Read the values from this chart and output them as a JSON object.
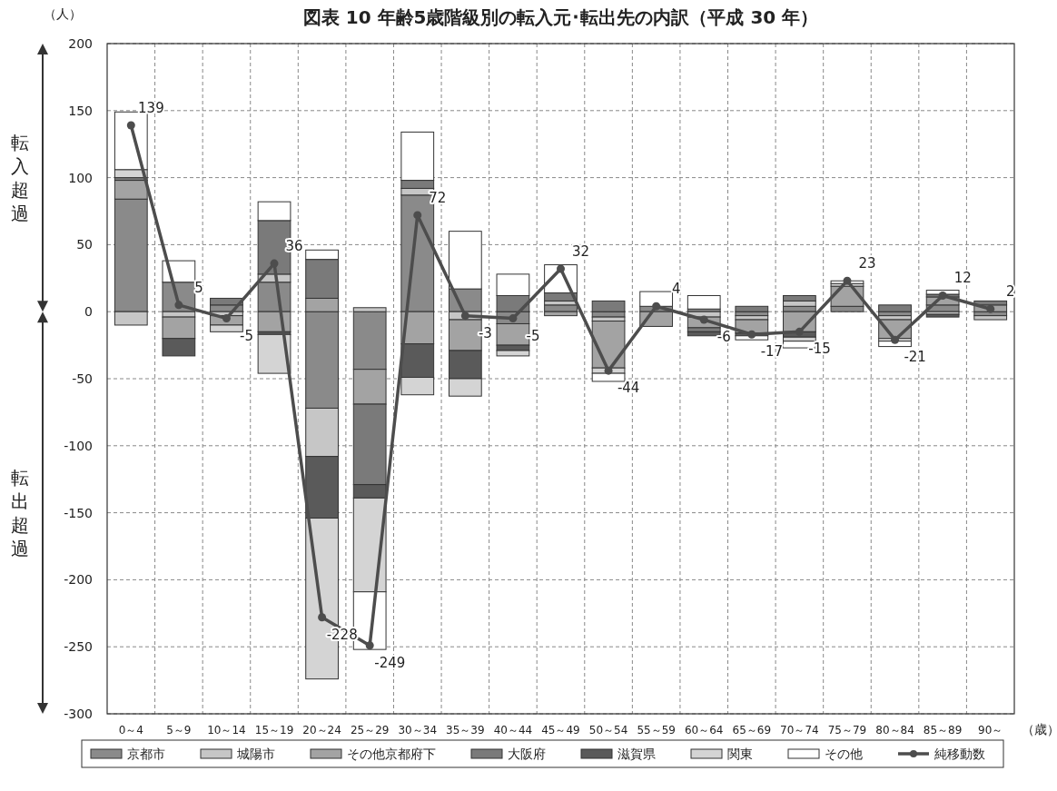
{
  "chart_data": {
    "type": "bar",
    "title": "図表 10  年齢5歳階級別の転入元･転出先の内訳（平成 30 年）",
    "stacked": true,
    "categories": [
      "0～4",
      "5～9",
      "10～14",
      "15～19",
      "20～24",
      "25～29",
      "30～34",
      "35～39",
      "40～44",
      "45～49",
      "50～54",
      "55～59",
      "60～64",
      "65～69",
      "70～74",
      "75～79",
      "80～84",
      "85～89",
      "90～"
    ],
    "series": [
      {
        "name": "京都市",
        "color": "#8a8a8a",
        "values": [
          84,
          22,
          5,
          22,
          -72,
          -43,
          87,
          17,
          -9,
          5,
          -4,
          4,
          2,
          -3,
          4,
          4,
          -3,
          5,
          -3
        ]
      },
      {
        "name": "城陽市",
        "color": "#c6c6c6",
        "values": [
          -10,
          -4,
          -3,
          6,
          -36,
          3,
          5,
          -6,
          null,
          3,
          -3,
          null,
          -4,
          -3,
          4,
          null,
          -3,
          -2,
          -3
        ]
      },
      {
        "name": "その他京都府下",
        "color": "#a3a3a3",
        "values": [
          14,
          -16,
          -7,
          -15,
          10,
          -26,
          -24,
          -23,
          -16,
          -3,
          -35,
          -11,
          -8,
          -10,
          -15,
          15,
          -14,
          6,
          5
        ]
      },
      {
        "name": "大阪府",
        "color": "#7a7a7a",
        "values": [
          2,
          null,
          5,
          40,
          29,
          -60,
          6,
          null,
          12,
          6,
          8,
          null,
          -3,
          4,
          4,
          null,
          5,
          2,
          3
        ]
      },
      {
        "name": "滋賀県",
        "color": "#5a5a5a",
        "values": [
          null,
          -13,
          null,
          -2,
          -46,
          -10,
          -25,
          -21,
          -4,
          null,
          null,
          null,
          -3,
          -2,
          -4,
          null,
          null,
          -2,
          null
        ]
      },
      {
        "name": "関東",
        "color": "#d4d4d4",
        "values": [
          6,
          null,
          -5,
          -29,
          -120,
          -70,
          -13,
          -13,
          -4,
          null,
          -4,
          null,
          null,
          null,
          -3,
          2,
          -2,
          null,
          null
        ]
      },
      {
        "name": "その他",
        "color": "#ffffff",
        "values": [
          43,
          16,
          null,
          14,
          7,
          -43,
          36,
          43,
          16,
          21,
          -6,
          11,
          10,
          -3,
          -5,
          2,
          -4,
          3,
          null
        ]
      },
      {
        "name": "純移動数",
        "type": "line",
        "color": "#4d4d4d",
        "marker": "circle",
        "values": [
          139,
          5,
          -5,
          36,
          -228,
          -249,
          72,
          -3,
          -5,
          32,
          -44,
          4,
          -6,
          -17,
          -15,
          23,
          -21,
          12,
          2
        ],
        "value_labels": [
          "139",
          "5",
          "-5",
          "36",
          "-228",
          "-249",
          "72",
          "-3",
          "-5",
          "32",
          "-44",
          "4",
          "-6",
          "-17",
          "-15",
          "23",
          "-21",
          "12",
          "2"
        ]
      }
    ],
    "ylim": [
      -300,
      200
    ],
    "yticks": [
      -300,
      -250,
      -200,
      -150,
      -100,
      -50,
      0,
      50,
      100,
      150,
      200
    ],
    "grid": true,
    "legend": "bottom",
    "annotations": [
      "（人）",
      "（歳）",
      "転入超過",
      "転出超過"
    ]
  }
}
